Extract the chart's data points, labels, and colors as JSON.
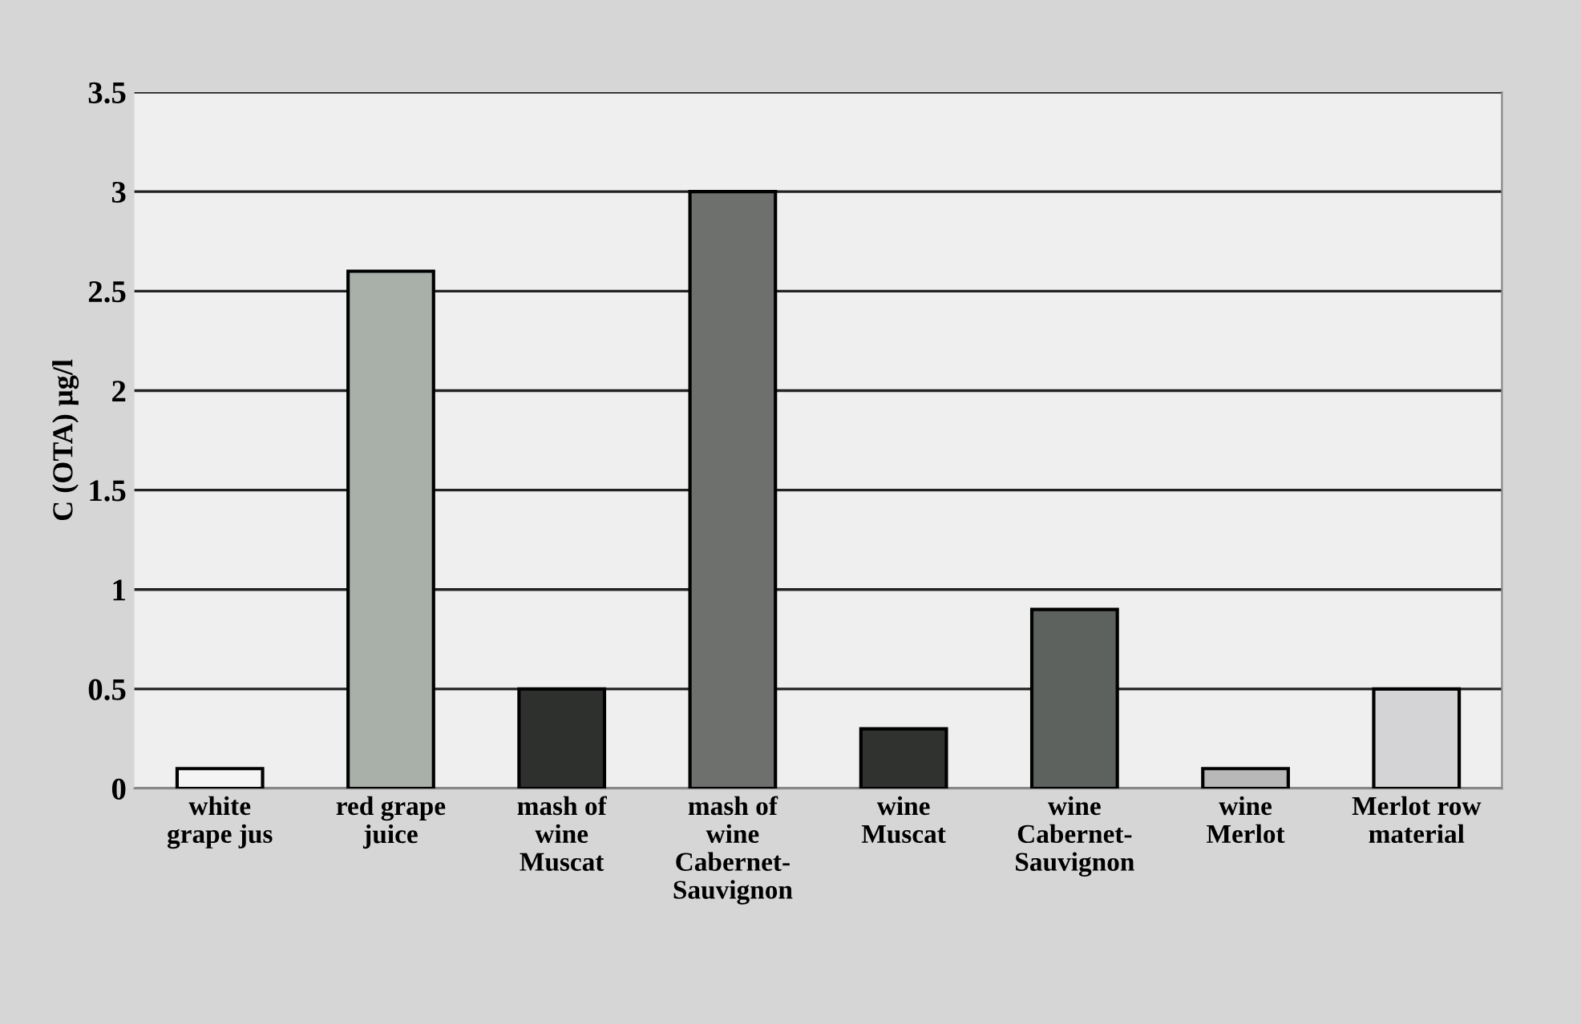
{
  "chart_data": {
    "type": "bar",
    "ylabel": "C (OTA) µg/l",
    "categories": [
      "white\ngrape jus",
      "red grape\njuice",
      "mash of\nwine\nMuscat",
      "mash of\nwine\nCabernet-\nSauvignon",
      "wine\nMuscat",
      "wine\nCabernet-\nSauvignon",
      "wine\nMerlot",
      "Merlot row\nmaterial"
    ],
    "values": [
      0.1,
      2.6,
      0.5,
      3.0,
      0.3,
      0.9,
      0.1,
      0.5
    ],
    "colors": [
      "#f4f4f4",
      "#a9b0aa",
      "#2e302e",
      "#6d706d",
      "#303230",
      "#5e625e",
      "#b8b8b8",
      "#d4d4d6"
    ],
    "ylim": [
      0,
      3.5
    ],
    "yticks": [
      0,
      0.5,
      1,
      1.5,
      2,
      2.5,
      3,
      3.5
    ],
    "grid": "y"
  }
}
